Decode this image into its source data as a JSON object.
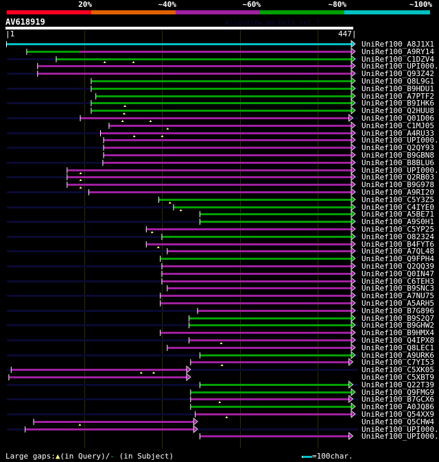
{
  "identity_scale": {
    "labels": [
      "20%",
      "~40%",
      "~60%",
      "~80%",
      "~100%"
    ],
    "colors": [
      "#ff0022",
      "#e06000",
      "#a020a0",
      "#00a000",
      "#00c0c0"
    ]
  },
  "query": {
    "name": "AV618919",
    "start": "1",
    "end": "447",
    "length": 447
  },
  "version": "AlignView.pm Beta rel.7",
  "colors": {
    "c": "#00c0c8",
    "g": "#00a000",
    "m": "#a020a0",
    "bg": "#0a0a33",
    "gap": "#ffff80"
  },
  "rows": [
    {
      "name": "UniRef100_A8J1X1",
      "segs": [
        [
          "c",
          1,
          447
        ]
      ],
      "bg": false,
      "marks": []
    },
    {
      "name": "UniRef100_A9RY14",
      "segs": [
        [
          "g",
          27,
          95
        ],
        [
          "m",
          95,
          447
        ]
      ],
      "bg": false,
      "marks": []
    },
    {
      "name": "UniRef100_C1DZV4",
      "segs": [
        [
          "g",
          65,
          447
        ]
      ],
      "bg": true,
      "marks": [
        127,
        164
      ]
    },
    {
      "name": "UniRef100_UPI000..",
      "segs": [
        [
          "m",
          41,
          447
        ]
      ],
      "bg": false,
      "marks": []
    },
    {
      "name": "UniRef100_Q93Z42",
      "segs": [
        [
          "m",
          41,
          447
        ]
      ],
      "bg": true,
      "marks": []
    },
    {
      "name": "UniRef100_Q8L9G1",
      "segs": [
        [
          "g",
          110,
          447
        ]
      ],
      "bg": false,
      "marks": []
    },
    {
      "name": "UniRef100_B9HDU1",
      "segs": [
        [
          "g",
          110,
          447
        ]
      ],
      "bg": true,
      "marks": []
    },
    {
      "name": "UniRef100_A7PTF2",
      "segs": [
        [
          "g",
          116,
          447
        ]
      ],
      "bg": false,
      "marks": []
    },
    {
      "name": "UniRef100_B9IHK6",
      "segs": [
        [
          "g",
          110,
          447
        ]
      ],
      "bg": true,
      "marks": [
        153
      ]
    },
    {
      "name": "UniRef100_Q2HUU8",
      "segs": [
        [
          "g",
          110,
          447
        ]
      ],
      "bg": false,
      "marks": [
        152
      ]
    },
    {
      "name": "UniRef100_Q01D06",
      "segs": [
        [
          "m",
          96,
          444
        ]
      ],
      "bg": true,
      "marks": [
        150,
        186
      ]
    },
    {
      "name": "UniRef100_C1MJ05",
      "segs": [
        [
          "m",
          133,
          447
        ]
      ],
      "bg": false,
      "marks": [
        208
      ]
    },
    {
      "name": "UniRef100_A4RU33",
      "segs": [
        [
          "m",
          122,
          447
        ]
      ],
      "bg": true,
      "marks": [
        165,
        201
      ]
    },
    {
      "name": "UniRef100_UPI000..",
      "segs": [
        [
          "m",
          126,
          447
        ]
      ],
      "bg": false,
      "marks": []
    },
    {
      "name": "UniRef100_Q2QY93",
      "segs": [
        [
          "m",
          126,
          447
        ]
      ],
      "bg": true,
      "marks": []
    },
    {
      "name": "UniRef100_B9GBN8",
      "segs": [
        [
          "m",
          126,
          447
        ]
      ],
      "bg": false,
      "marks": []
    },
    {
      "name": "UniRef100_B8BLU6",
      "segs": [
        [
          "m",
          125,
          447
        ]
      ],
      "bg": true,
      "marks": []
    },
    {
      "name": "UniRef100_UPI000..",
      "segs": [
        [
          "m",
          79,
          447
        ]
      ],
      "bg": false,
      "marks": [
        96
      ]
    },
    {
      "name": "UniRef100_Q2RB03",
      "segs": [
        [
          "m",
          79,
          447
        ]
      ],
      "bg": true,
      "marks": [
        96
      ]
    },
    {
      "name": "UniRef100_B9G978",
      "segs": [
        [
          "m",
          79,
          447
        ]
      ],
      "bg": false,
      "marks": [
        96
      ]
    },
    {
      "name": "UniRef100_A9RI20",
      "segs": [
        [
          "m",
          107,
          447
        ]
      ],
      "bg": true,
      "marks": []
    },
    {
      "name": "UniRef100_C5Y3Z5",
      "segs": [
        [
          "g",
          197,
          447
        ]
      ],
      "bg": false,
      "marks": [
        211
      ]
    },
    {
      "name": "UniRef100_C4IYE0",
      "segs": [
        [
          "g",
          216,
          447
        ]
      ],
      "bg": true,
      "marks": [
        225
      ]
    },
    {
      "name": "UniRef100_A5BE71",
      "segs": [
        [
          "g",
          250,
          447
        ]
      ],
      "bg": false,
      "marks": []
    },
    {
      "name": "UniRef100_A9S0H1",
      "segs": [
        [
          "g",
          250,
          447
        ]
      ],
      "bg": true,
      "marks": []
    },
    {
      "name": "UniRef100_C5YP25",
      "segs": [
        [
          "m",
          181,
          447
        ]
      ],
      "bg": false,
      "marks": [
        188
      ]
    },
    {
      "name": "UniRef100_O82324",
      "segs": [
        [
          "g",
          201,
          447
        ]
      ],
      "bg": true,
      "marks": []
    },
    {
      "name": "UniRef100_B4FYT6",
      "segs": [
        [
          "m",
          181,
          447
        ]
      ],
      "bg": false,
      "marks": [
        196
      ]
    },
    {
      "name": "UniRef100_A7QL48",
      "segs": [
        [
          "m",
          208,
          447
        ]
      ],
      "bg": true,
      "marks": []
    },
    {
      "name": "UniRef100_Q9FPH4",
      "segs": [
        [
          "g",
          199,
          447
        ]
      ],
      "bg": false,
      "marks": []
    },
    {
      "name": "UniRef100_Q2QQ39",
      "segs": [
        [
          "m",
          201,
          447
        ]
      ],
      "bg": true,
      "marks": []
    },
    {
      "name": "UniRef100_Q0IN47",
      "segs": [
        [
          "m",
          201,
          447
        ]
      ],
      "bg": false,
      "marks": []
    },
    {
      "name": "UniRef100_C6TEH3",
      "segs": [
        [
          "m",
          201,
          447
        ]
      ],
      "bg": true,
      "marks": []
    },
    {
      "name": "UniRef100_B9SNC3",
      "segs": [
        [
          "m",
          208,
          447
        ]
      ],
      "bg": false,
      "marks": []
    },
    {
      "name": "UniRef100_A7NU75",
      "segs": [
        [
          "m",
          199,
          447
        ]
      ],
      "bg": true,
      "marks": []
    },
    {
      "name": "UniRef100_A5ARH5",
      "segs": [
        [
          "m",
          199,
          447
        ]
      ],
      "bg": false,
      "marks": []
    },
    {
      "name": "UniRef100_B7G896",
      "segs": [
        [
          "m",
          247,
          447
        ]
      ],
      "bg": true,
      "marks": []
    },
    {
      "name": "UniRef100_B9S2Q7",
      "segs": [
        [
          "g",
          236,
          447
        ]
      ],
      "bg": false,
      "marks": []
    },
    {
      "name": "UniRef100_B9GHW2",
      "segs": [
        [
          "g",
          236,
          447
        ]
      ],
      "bg": true,
      "marks": []
    },
    {
      "name": "UniRef100_B9HMX4",
      "segs": [
        [
          "m",
          199,
          447
        ]
      ],
      "bg": false,
      "marks": []
    },
    {
      "name": "UniRef100_Q4IPX8",
      "segs": [
        [
          "m",
          236,
          447
        ]
      ],
      "bg": true,
      "marks": [
        277
      ]
    },
    {
      "name": "UniRef100_Q8LEC1",
      "segs": [
        [
          "m",
          208,
          447
        ]
      ],
      "bg": false,
      "marks": []
    },
    {
      "name": "UniRef100_A9URK6",
      "segs": [
        [
          "g",
          250,
          447
        ]
      ],
      "bg": true,
      "marks": []
    },
    {
      "name": "UniRef100_C7YI53",
      "segs": [
        [
          "m",
          238,
          444
        ]
      ],
      "bg": false,
      "marks": [
        278
      ]
    },
    {
      "name": "UniRef100_C5XK05",
      "segs": [
        [
          "m",
          7,
          235
        ]
      ],
      "bg": true,
      "marks": [
        174,
        190
      ]
    },
    {
      "name": "UniRef100_C5XBT9",
      "segs": [
        [
          "m",
          4,
          235
        ]
      ],
      "bg": false,
      "marks": []
    },
    {
      "name": "UniRef100_Q22T39",
      "segs": [
        [
          "g",
          250,
          444
        ]
      ],
      "bg": true,
      "marks": []
    },
    {
      "name": "UniRef100_Q9FMG9",
      "segs": [
        [
          "g",
          238,
          447
        ]
      ],
      "bg": false,
      "marks": []
    },
    {
      "name": "UniRef100_B7GCX6",
      "segs": [
        [
          "m",
          238,
          444
        ]
      ],
      "bg": true,
      "marks": [
        275
      ]
    },
    {
      "name": "UniRef100_A0JQ86",
      "segs": [
        [
          "g",
          238,
          447
        ]
      ],
      "bg": false,
      "marks": []
    },
    {
      "name": "UniRef100_Q54XX9",
      "segs": [
        [
          "m",
          244,
          447
        ]
      ],
      "bg": true,
      "marks": [
        284
      ]
    },
    {
      "name": "UniRef100_Q5CHW4",
      "segs": [
        [
          "m",
          36,
          244
        ]
      ],
      "bg": false,
      "marks": [
        95
      ]
    },
    {
      "name": "UniRef100_UPI000..",
      "segs": [
        [
          "m",
          25,
          244
        ]
      ],
      "bg": true,
      "marks": []
    },
    {
      "name": "UniRef100_UPI000..",
      "segs": [
        [
          "m",
          250,
          444
        ]
      ],
      "bg": false,
      "marks": []
    }
  ],
  "legend": {
    "prefix": "Large gaps:",
    "query": "(in Query)/",
    "dash": "-",
    "subject": " (in Subject)",
    "scale": "=100char."
  }
}
